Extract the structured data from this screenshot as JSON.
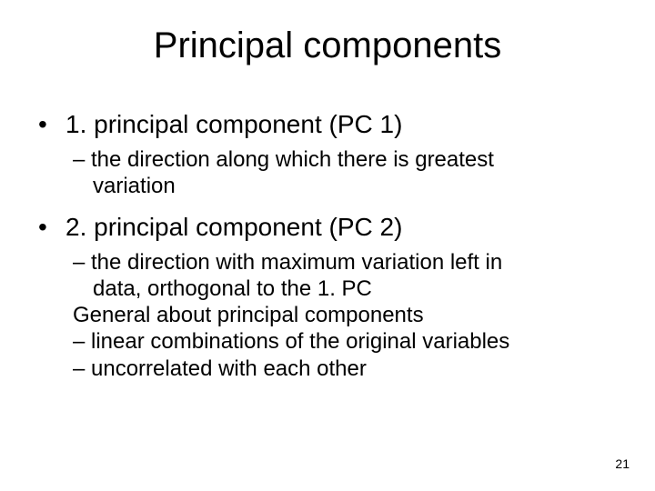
{
  "title": "Principal components",
  "items": [
    {
      "label": "1. principal component (PC 1)",
      "sub": [
        {
          "text": "– the direction along which there is greatest",
          "indent": false
        },
        {
          "text": "variation",
          "indent": true
        }
      ]
    },
    {
      "label": "2. principal component (PC 2)",
      "sub": [
        {
          "text": "– the direction with maximum variation left in",
          "indent": false
        },
        {
          "text": "data,  orthogonal to the 1. PC",
          "indent": true
        },
        {
          "text": "General about principal components",
          "indent": false
        },
        {
          "text": "– linear combinations of the original variables",
          "indent": false
        },
        {
          "text": "– uncorrelated with each other",
          "indent": false
        }
      ]
    }
  ],
  "page_number": "21",
  "colors": {
    "bg": "#ffffff",
    "text": "#000000"
  },
  "fontsizes": {
    "title": 40,
    "level1": 28,
    "level2": 24,
    "pagenum": 14
  }
}
